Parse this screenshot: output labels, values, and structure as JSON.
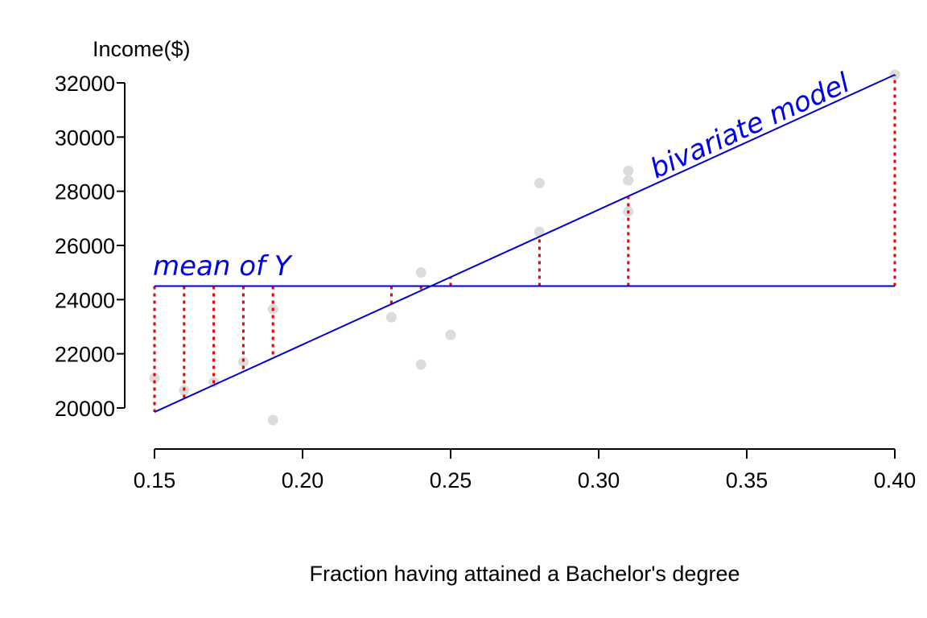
{
  "chart_data": {
    "type": "scatter",
    "title": "",
    "xlabel": "Fraction having attained a Bachelor's degree",
    "ylabel": "Income($)",
    "xlim": [
      0.15,
      0.4
    ],
    "ylim": [
      20000,
      32000
    ],
    "x_ticks": [
      "0.15",
      "0.20",
      "0.25",
      "0.30",
      "0.35",
      "0.40"
    ],
    "y_ticks": [
      "20000",
      "22000",
      "24000",
      "26000",
      "28000",
      "30000",
      "32000"
    ],
    "grid": false,
    "points": [
      {
        "x": 0.15,
        "y": 21100
      },
      {
        "x": 0.16,
        "y": 20650
      },
      {
        "x": 0.17,
        "y": 20950
      },
      {
        "x": 0.18,
        "y": 21700
      },
      {
        "x": 0.19,
        "y": 23650
      },
      {
        "x": 0.19,
        "y": 19550
      },
      {
        "x": 0.23,
        "y": 23350
      },
      {
        "x": 0.24,
        "y": 25000
      },
      {
        "x": 0.24,
        "y": 21600
      },
      {
        "x": 0.25,
        "y": 22700
      },
      {
        "x": 0.28,
        "y": 28300
      },
      {
        "x": 0.28,
        "y": 26500
      },
      {
        "x": 0.31,
        "y": 28750
      },
      {
        "x": 0.31,
        "y": 28400
      },
      {
        "x": 0.31,
        "y": 27250
      },
      {
        "x": 0.4,
        "y": 32300
      }
    ],
    "mean_of_y": 24500,
    "regression": {
      "x0": 0.15,
      "y0": 19850,
      "x1": 0.4,
      "y1": 32300
    },
    "residual_x": [
      0.15,
      0.16,
      0.17,
      0.18,
      0.19,
      0.23,
      0.24,
      0.25,
      0.28,
      0.31,
      0.4
    ],
    "annotations": {
      "mean_label": "mean of Y",
      "model_label": "bivariate model"
    },
    "colors": {
      "points": "#dcdcdc",
      "lines": "#0000cc",
      "residuals": "#ee0000",
      "annotation": "#0000ee",
      "axis": "#000000"
    }
  }
}
